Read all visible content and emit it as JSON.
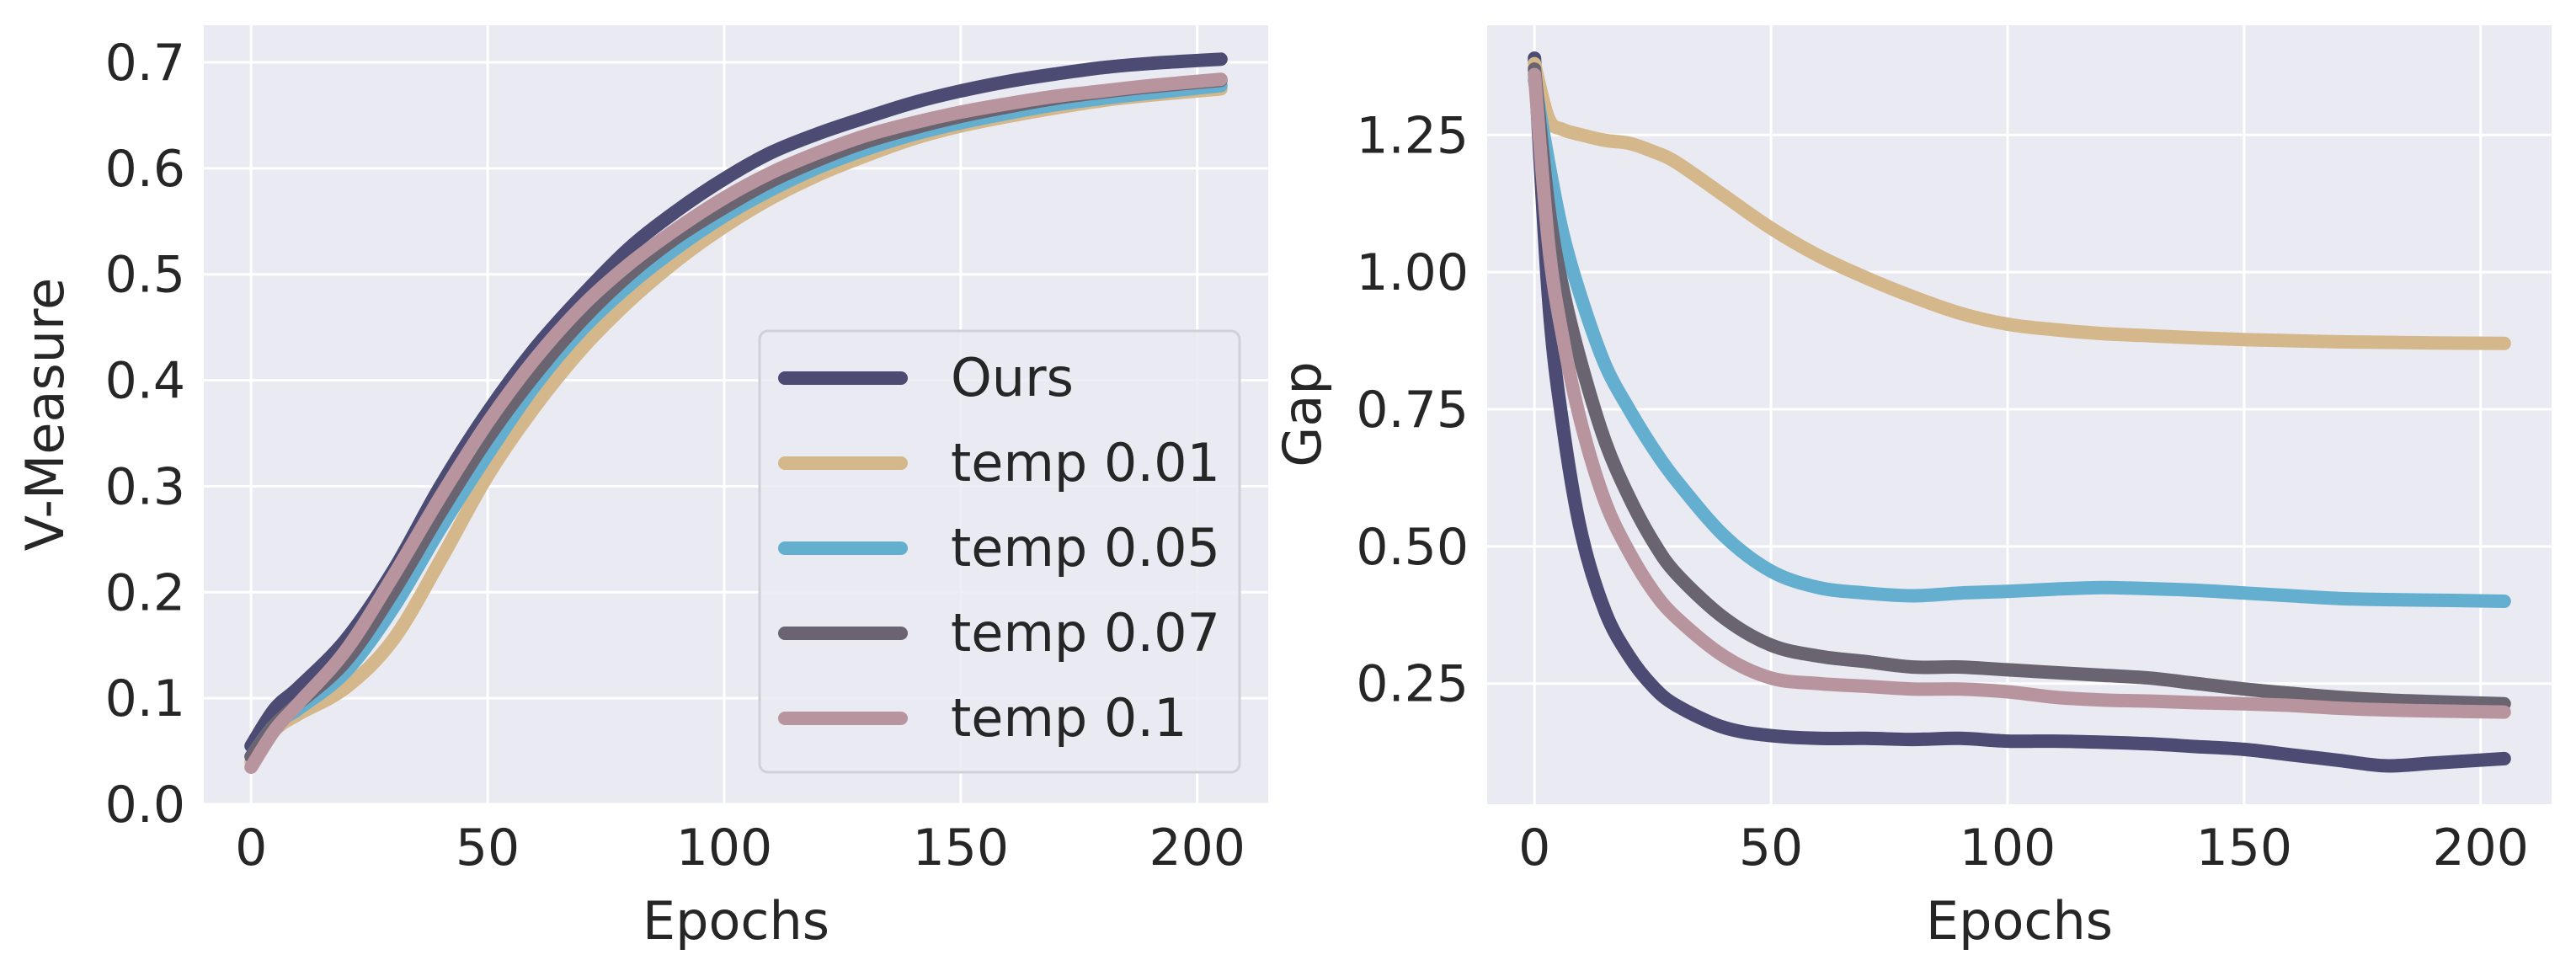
{
  "chart_data": [
    {
      "type": "line",
      "title": "",
      "xlabel": "Epochs",
      "ylabel": "V-Measure",
      "xlim": [
        -10,
        215
      ],
      "ylim": [
        0.0,
        0.735
      ],
      "xticks": [
        0,
        50,
        100,
        150,
        200
      ],
      "xtick_labels": [
        "0",
        "50",
        "100",
        "150",
        "200"
      ],
      "yticks": [
        0.0,
        0.1,
        0.2,
        0.3,
        0.4,
        0.5,
        0.6,
        0.7
      ],
      "ytick_labels": [
        "0.0",
        "0.1",
        "0.2",
        "0.3",
        "0.4",
        "0.5",
        "0.6",
        "0.7"
      ],
      "grid": true,
      "legend": "lower-right",
      "series": [
        {
          "name": "Ours",
          "color": "#4b4b73",
          "x": [
            0,
            5,
            10,
            20,
            30,
            40,
            50,
            60,
            70,
            80,
            90,
            100,
            110,
            120,
            130,
            140,
            150,
            160,
            170,
            180,
            190,
            205
          ],
          "y": [
            0.055,
            0.09,
            0.11,
            0.155,
            0.22,
            0.3,
            0.37,
            0.43,
            0.48,
            0.525,
            0.56,
            0.59,
            0.615,
            0.633,
            0.648,
            0.662,
            0.673,
            0.682,
            0.689,
            0.695,
            0.699,
            0.703
          ]
        },
        {
          "name": "temp 0.01",
          "color": "#d4b88c",
          "x": [
            0,
            5,
            10,
            20,
            30,
            40,
            50,
            60,
            70,
            80,
            90,
            100,
            110,
            120,
            130,
            140,
            150,
            160,
            170,
            180,
            190,
            205
          ],
          "y": [
            0.04,
            0.07,
            0.085,
            0.11,
            0.155,
            0.23,
            0.31,
            0.375,
            0.43,
            0.475,
            0.513,
            0.545,
            0.572,
            0.594,
            0.612,
            0.628,
            0.64,
            0.649,
            0.657,
            0.664,
            0.669,
            0.675
          ]
        },
        {
          "name": "temp 0.05",
          "color": "#64afd0",
          "x": [
            0,
            5,
            10,
            20,
            30,
            40,
            50,
            60,
            70,
            80,
            90,
            100,
            110,
            120,
            130,
            140,
            150,
            160,
            170,
            180,
            190,
            205
          ],
          "y": [
            0.045,
            0.075,
            0.09,
            0.125,
            0.185,
            0.26,
            0.33,
            0.395,
            0.448,
            0.49,
            0.525,
            0.555,
            0.58,
            0.601,
            0.618,
            0.632,
            0.643,
            0.652,
            0.66,
            0.666,
            0.671,
            0.678
          ]
        },
        {
          "name": "temp 0.07",
          "color": "#6a6370",
          "x": [
            0,
            5,
            10,
            20,
            30,
            40,
            50,
            60,
            70,
            80,
            90,
            100,
            110,
            120,
            130,
            140,
            150,
            160,
            170,
            180,
            190,
            205
          ],
          "y": [
            0.045,
            0.075,
            0.095,
            0.135,
            0.2,
            0.275,
            0.345,
            0.405,
            0.457,
            0.5,
            0.535,
            0.563,
            0.588,
            0.608,
            0.625,
            0.638,
            0.649,
            0.658,
            0.666,
            0.672,
            0.677,
            0.683
          ]
        },
        {
          "name": "temp 0.1",
          "color": "#b8959e",
          "x": [
            0,
            5,
            10,
            20,
            30,
            40,
            50,
            60,
            70,
            80,
            90,
            100,
            110,
            120,
            130,
            140,
            150,
            160,
            170,
            180,
            190,
            205
          ],
          "y": [
            0.035,
            0.07,
            0.095,
            0.145,
            0.215,
            0.29,
            0.36,
            0.42,
            0.47,
            0.51,
            0.543,
            0.572,
            0.596,
            0.615,
            0.631,
            0.643,
            0.653,
            0.661,
            0.668,
            0.673,
            0.678,
            0.684
          ]
        }
      ]
    },
    {
      "type": "line",
      "title": "",
      "xlabel": "Epochs",
      "ylabel": "Gap",
      "xlim": [
        -10,
        215
      ],
      "ylim": [
        0.03,
        1.45
      ],
      "xticks": [
        0,
        50,
        100,
        150,
        200
      ],
      "xtick_labels": [
        "0",
        "50",
        "100",
        "150",
        "200"
      ],
      "yticks": [
        0.25,
        0.5,
        0.75,
        1.0,
        1.25
      ],
      "ytick_labels": [
        "0.25",
        "0.50",
        "0.75",
        "1.00",
        "1.25"
      ],
      "grid": true,
      "legend": "none",
      "series": [
        {
          "name": "Ours",
          "color": "#4b4b73",
          "x": [
            0,
            3,
            6,
            10,
            15,
            20,
            25,
            30,
            40,
            50,
            60,
            70,
            80,
            90,
            100,
            110,
            120,
            130,
            140,
            150,
            160,
            170,
            180,
            190,
            205
          ],
          "y": [
            1.39,
            0.95,
            0.72,
            0.52,
            0.38,
            0.3,
            0.245,
            0.21,
            0.17,
            0.155,
            0.15,
            0.15,
            0.148,
            0.15,
            0.145,
            0.145,
            0.143,
            0.14,
            0.135,
            0.13,
            0.12,
            0.11,
            0.1,
            0.105,
            0.113
          ]
        },
        {
          "name": "temp 0.01",
          "color": "#d4b88c",
          "x": [
            0,
            3,
            6,
            10,
            15,
            20,
            25,
            30,
            40,
            50,
            60,
            70,
            80,
            90,
            100,
            110,
            120,
            130,
            140,
            150,
            160,
            170,
            180,
            190,
            205
          ],
          "y": [
            1.38,
            1.28,
            1.26,
            1.25,
            1.24,
            1.235,
            1.22,
            1.2,
            1.14,
            1.08,
            1.03,
            0.99,
            0.955,
            0.925,
            0.905,
            0.895,
            0.888,
            0.884,
            0.88,
            0.877,
            0.875,
            0.873,
            0.872,
            0.871,
            0.87
          ]
        },
        {
          "name": "temp 0.05",
          "color": "#64afd0",
          "x": [
            0,
            3,
            6,
            10,
            15,
            20,
            25,
            30,
            40,
            50,
            60,
            70,
            80,
            90,
            100,
            110,
            120,
            130,
            140,
            150,
            160,
            170,
            180,
            190,
            205
          ],
          "y": [
            1.35,
            1.2,
            1.07,
            0.95,
            0.83,
            0.75,
            0.68,
            0.62,
            0.52,
            0.455,
            0.425,
            0.415,
            0.41,
            0.415,
            0.418,
            0.422,
            0.425,
            0.423,
            0.42,
            0.415,
            0.41,
            0.405,
            0.403,
            0.402,
            0.4
          ]
        },
        {
          "name": "temp 0.07",
          "color": "#6a6370",
          "x": [
            0,
            3,
            6,
            10,
            15,
            20,
            25,
            30,
            40,
            50,
            60,
            70,
            80,
            90,
            100,
            110,
            120,
            130,
            140,
            150,
            160,
            170,
            180,
            190,
            205
          ],
          "y": [
            1.37,
            1.12,
            0.97,
            0.83,
            0.69,
            0.59,
            0.51,
            0.45,
            0.37,
            0.32,
            0.3,
            0.29,
            0.28,
            0.28,
            0.275,
            0.27,
            0.265,
            0.26,
            0.25,
            0.24,
            0.232,
            0.225,
            0.22,
            0.217,
            0.213
          ]
        },
        {
          "name": "temp 0.1",
          "color": "#b8959e",
          "x": [
            0,
            3,
            6,
            10,
            15,
            20,
            25,
            30,
            40,
            50,
            60,
            70,
            80,
            90,
            100,
            110,
            120,
            130,
            140,
            150,
            160,
            170,
            180,
            190,
            205
          ],
          "y": [
            1.36,
            1.05,
            0.88,
            0.72,
            0.58,
            0.49,
            0.42,
            0.37,
            0.3,
            0.26,
            0.25,
            0.245,
            0.24,
            0.24,
            0.235,
            0.225,
            0.22,
            0.218,
            0.215,
            0.213,
            0.21,
            0.205,
            0.202,
            0.2,
            0.198
          ]
        }
      ]
    }
  ]
}
